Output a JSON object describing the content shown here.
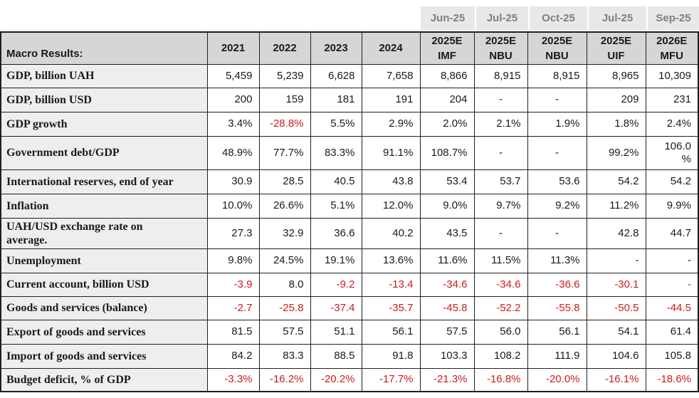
{
  "colors": {
    "red": "#c81e1e",
    "header_bg": "#d6d6d6",
    "label_bg": "#eeeeee",
    "date_bg": "#e8e8e8",
    "date_text": "#7f7f7f",
    "border": "#1f1f1f",
    "text": "#1a1a1a"
  },
  "chart_data": {
    "type": "table",
    "title": "Macro Results:",
    "forecast_dates": [
      "Jun-25",
      "Jul-25",
      "Oct-25",
      "Jul-25",
      "Sep-25"
    ],
    "columns": [
      "2021",
      "2022",
      "2023",
      "2024",
      "2025E\nIMF",
      "2025E\nNBU",
      "2025E\nNBU",
      "2025E\nUIF",
      "2026E\nMFU"
    ],
    "rows": [
      {
        "label": "GDP, billion UAH",
        "cells": [
          "5,459",
          "5,239",
          "6,628",
          "7,658",
          "8,866",
          "8,915",
          "8,915",
          "8,965",
          "10,309"
        ]
      },
      {
        "label": "GDP, billion USD",
        "cells": [
          "200",
          "159",
          "181",
          "191",
          "204",
          {
            "v": "-",
            "align": "center"
          },
          {
            "v": "-",
            "align": "center"
          },
          "209",
          "231"
        ]
      },
      {
        "label": "GDP growth",
        "cells": [
          "3.4%",
          {
            "v": "-28.8%",
            "red": true
          },
          "5.5%",
          "2.9%",
          "2.0%",
          "2.1%",
          "1.9%",
          "1.8%",
          "2.4%"
        ]
      },
      {
        "label": "Government debt/GDP",
        "cells": [
          "48.9%",
          "77.7%",
          "83.3%",
          "91.1%",
          "108.7%",
          {
            "v": "-",
            "align": "center"
          },
          {
            "v": "-",
            "align": "center"
          },
          "99.2%",
          "106.0\n%"
        ]
      },
      {
        "label": "International reserves, end of year",
        "cells": [
          "30.9",
          "28.5",
          "40.5",
          "43.8",
          "53.4",
          "53.7",
          "53.6",
          "54.2",
          "54.2"
        ]
      },
      {
        "label": "Inflation",
        "cells": [
          "10.0%",
          "26.6%",
          "5.1%",
          "12.0%",
          "9.0%",
          "9.7%",
          "9.2%",
          "11.2%",
          "9.9%"
        ]
      },
      {
        "label": "UAH/USD exchange rate on\naverage.",
        "cells": [
          "27.3",
          "32.9",
          "36.6",
          "40.2",
          "43.5",
          {
            "v": "-",
            "align": "center"
          },
          {
            "v": "-",
            "align": "center"
          },
          "42.8",
          "44.7"
        ]
      },
      {
        "label": "Unemployment",
        "cells": [
          "9.8%",
          "24.5%",
          "19.1%",
          "13.6%",
          "11.6%",
          "11.5%",
          "11.3%",
          "-",
          "-"
        ]
      },
      {
        "label": "Current account, billion USD",
        "cells": [
          {
            "v": "-3.9",
            "red": true
          },
          "8.0",
          {
            "v": "-9.2",
            "red": true
          },
          {
            "v": "-13.4",
            "red": true
          },
          {
            "v": "-34.6",
            "red": true
          },
          {
            "v": "-34.6",
            "red": true
          },
          {
            "v": "-36.6",
            "red": true
          },
          {
            "v": "-30.1",
            "red": true
          },
          {
            "v": "-",
            "red": true
          }
        ]
      },
      {
        "label": "Goods and services (balance)",
        "cells": [
          {
            "v": "-2.7",
            "red": true
          },
          {
            "v": "-25.8",
            "red": true
          },
          {
            "v": "-37.4",
            "red": true
          },
          {
            "v": "-35.7",
            "red": true
          },
          {
            "v": "-45.8",
            "red": true
          },
          {
            "v": "-52.2",
            "red": true
          },
          {
            "v": "-55.8",
            "red": true
          },
          {
            "v": "-50.5",
            "red": true
          },
          {
            "v": "-44.5",
            "red": true
          }
        ]
      },
      {
        "label": "Export of goods and services",
        "cells": [
          "81.5",
          "57.5",
          "51.1",
          "56.1",
          "57.5",
          "56.0",
          "56.1",
          "54.1",
          "61.4"
        ]
      },
      {
        "label": "Import of goods and services",
        "cells": [
          "84.2",
          "83.3",
          "88.5",
          "91.8",
          "103.3",
          "108.2",
          "111.9",
          "104.6",
          "105.8"
        ]
      },
      {
        "label": "Budget deficit, % of GDP",
        "cells": [
          {
            "v": "-3.3%",
            "red": true
          },
          {
            "v": "-16.2%",
            "red": true
          },
          {
            "v": "-20.2%",
            "red": true
          },
          {
            "v": "-17.7%",
            "red": true
          },
          {
            "v": "-21.3%",
            "red": true
          },
          {
            "v": "-16.8%",
            "red": true
          },
          {
            "v": "-20.0%",
            "red": true
          },
          {
            "v": "-16.1%",
            "red": true
          },
          {
            "v": "-18.6%",
            "red": true
          }
        ]
      }
    ]
  }
}
